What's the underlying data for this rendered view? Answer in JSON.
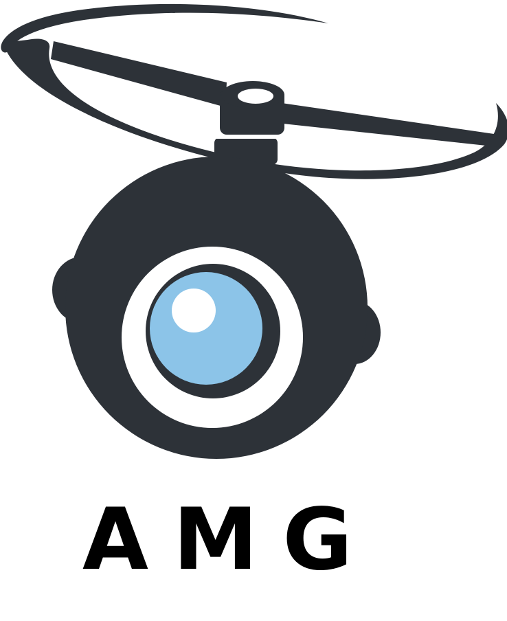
{
  "logo": {
    "icon": "drone-camera-icon",
    "wordmark": "AMG",
    "colors": {
      "dark": "#2d3238",
      "lens_blue": "#8cc4e8",
      "white": "#ffffff"
    }
  }
}
